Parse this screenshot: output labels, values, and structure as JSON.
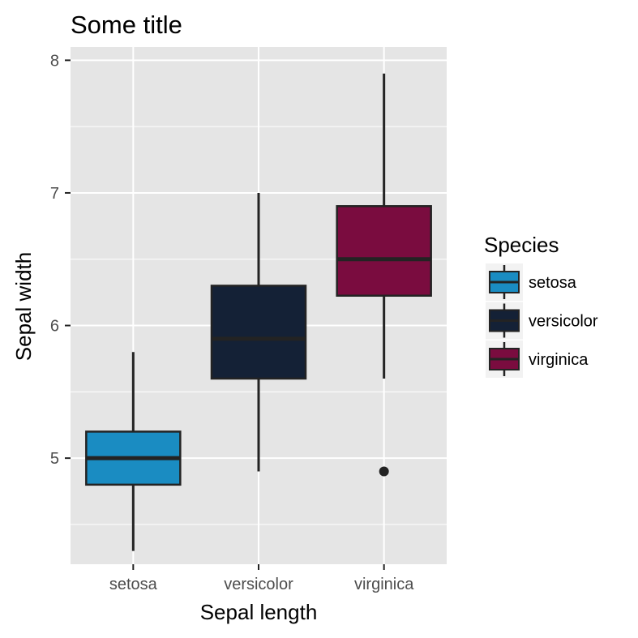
{
  "chart_data": {
    "type": "boxplot",
    "title": "Some title",
    "xlabel": "Sepal length",
    "ylabel": "Sepal width",
    "categories": [
      "setosa",
      "versicolor",
      "virginica"
    ],
    "ylim": [
      4.2,
      8.1
    ],
    "yticks": [
      5,
      6,
      7,
      8
    ],
    "grid": true,
    "legend": {
      "title": "Species",
      "position": "right",
      "entries": [
        "setosa",
        "versicolor",
        "virginica"
      ]
    },
    "series": [
      {
        "name": "setosa",
        "min": 4.3,
        "q1": 4.8,
        "median": 5.0,
        "q3": 5.2,
        "max": 5.8,
        "outliers": [],
        "color": "#1a8cc2"
      },
      {
        "name": "versicolor",
        "min": 4.9,
        "q1": 5.6,
        "median": 5.9,
        "q3": 6.3,
        "max": 7.0,
        "outliers": [],
        "color": "#142136"
      },
      {
        "name": "virginica",
        "min": 5.6,
        "q1": 6.225,
        "median": 6.5,
        "q3": 6.9,
        "max": 7.9,
        "outliers": [
          4.9
        ],
        "color": "#7a0c3f"
      }
    ],
    "colors": {
      "panel": "#e5e5e5",
      "grid": "#ffffff",
      "line": "#232323",
      "tick": "#4d4d4d"
    }
  }
}
